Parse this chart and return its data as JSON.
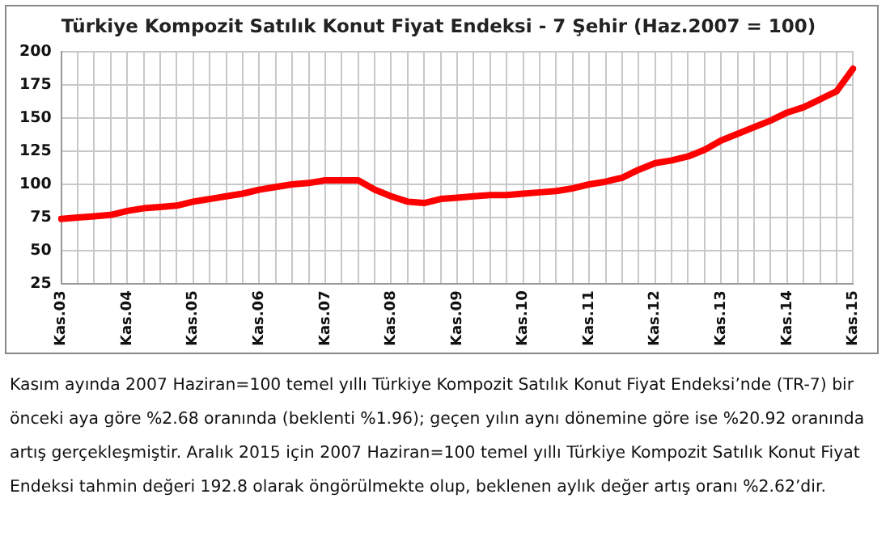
{
  "chart_data": {
    "type": "line",
    "title": "Türkiye Kompozit Satılık Konut Fiyat Endeksi - 7 Şehir (Haz.2007 = 100)",
    "categories": [
      "Kas.03",
      null,
      null,
      null,
      "Kas.04",
      null,
      null,
      null,
      "Kas.05",
      null,
      null,
      null,
      "Kas.06",
      null,
      null,
      null,
      "Kas.07",
      null,
      null,
      null,
      "Kas.08",
      null,
      null,
      null,
      "Kas.09",
      null,
      null,
      null,
      "Kas.10",
      null,
      null,
      null,
      "Kas.11",
      null,
      null,
      null,
      "Kas.12",
      null,
      null,
      null,
      "Kas.13",
      null,
      null,
      null,
      "Kas.14",
      null,
      null,
      null,
      "Kas.15"
    ],
    "series": [
      {
        "color": "#ff0000",
        "values": [
          74,
          75,
          76,
          77,
          80,
          82,
          83,
          84,
          87,
          89,
          91,
          93,
          96,
          98,
          100,
          101,
          103,
          103,
          103,
          96,
          91,
          87,
          86,
          89,
          90,
          91,
          92,
          92,
          93,
          94,
          95,
          97,
          100,
          102,
          105,
          111,
          116,
          118,
          121,
          126,
          133,
          138,
          143,
          148,
          154,
          158,
          164,
          170,
          187
        ]
      }
    ],
    "ylim": [
      25,
      200
    ],
    "yticks": [
      25,
      50,
      75,
      100,
      125,
      150,
      175,
      200
    ],
    "grid": true,
    "legend": false,
    "marker": "none",
    "line_style": "solid",
    "annotations": [
      "Kasım ayında 2007 Haziran=100 temel yıllı Türkiye Kompozit Satılık Konut Fiyat Endeksi’nde (TR-7) bir önceki aya göre %2.68 oranında (beklenti %1.96); geçen yılın aynı dönemine göre ise %20.92 oranında artış gerçekleşmiştir. Aralık 2015 için 2007 Haziran=100 temel yıllı Türkiye Kompozit Satılık Konut Fiyat Endeksi tahmin değeri 192.8 olarak öngörülmekte olup, beklenen aylık değer artış oranı %2.62’dir."
    ]
  }
}
